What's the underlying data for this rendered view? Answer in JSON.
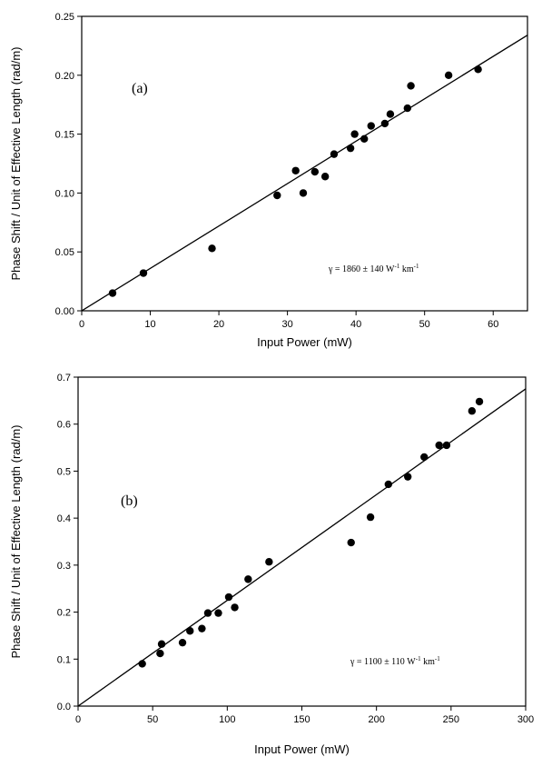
{
  "chart_data": [
    {
      "type": "scatter",
      "panel_label": "(a)",
      "xlabel": "Input Power (mW)",
      "ylabel": "Phase Shift / Unit of Effective Length (rad/m)",
      "xlim": [
        0,
        65
      ],
      "ylim": [
        0,
        0.25
      ],
      "xticks": [
        0,
        10,
        20,
        30,
        40,
        50,
        60
      ],
      "yticks": [
        0.0,
        0.05,
        0.1,
        0.15,
        0.2,
        0.25
      ],
      "ytick_decimals": 2,
      "annotation": {
        "base": "γ = 1860 ± 140 W",
        "exp1": "-1",
        "mid": " km",
        "exp2": "-1"
      },
      "fit_line": {
        "x": [
          0,
          65
        ],
        "y": [
          0,
          0.234
        ]
      },
      "points": [
        [
          4.5,
          0.015
        ],
        [
          9,
          0.032
        ],
        [
          19,
          0.053
        ],
        [
          28.5,
          0.098
        ],
        [
          31.2,
          0.119
        ],
        [
          32.3,
          0.1
        ],
        [
          34,
          0.118
        ],
        [
          35.5,
          0.114
        ],
        [
          36.8,
          0.133
        ],
        [
          39.2,
          0.138
        ],
        [
          39.8,
          0.15
        ],
        [
          41.2,
          0.146
        ],
        [
          42.2,
          0.157
        ],
        [
          44.2,
          0.159
        ],
        [
          45,
          0.167
        ],
        [
          47.5,
          0.172
        ],
        [
          48,
          0.191
        ],
        [
          53.5,
          0.2
        ],
        [
          57.8,
          0.205
        ]
      ]
    },
    {
      "type": "scatter",
      "panel_label": "(b)",
      "xlabel": "Input Power (mW)",
      "ylabel": "Phase Shift / Unit of Effective Length (rad/m)",
      "xlim": [
        0,
        300
      ],
      "ylim": [
        0,
        0.7
      ],
      "xticks": [
        0,
        50,
        100,
        150,
        200,
        250,
        300
      ],
      "yticks": [
        0.0,
        0.1,
        0.2,
        0.3,
        0.4,
        0.5,
        0.6,
        0.7
      ],
      "ytick_decimals": 1,
      "annotation": {
        "base": "γ = 1100 ± 110 W",
        "exp1": "-1",
        "mid": " km",
        "exp2": "-1"
      },
      "fit_line": {
        "x": [
          0,
          300
        ],
        "y": [
          0,
          0.675
        ]
      },
      "points": [
        [
          43,
          0.09
        ],
        [
          55,
          0.112
        ],
        [
          56,
          0.132
        ],
        [
          70,
          0.135
        ],
        [
          75,
          0.16
        ],
        [
          83,
          0.165
        ],
        [
          87,
          0.198
        ],
        [
          94,
          0.198
        ],
        [
          101,
          0.232
        ],
        [
          105,
          0.21
        ],
        [
          114,
          0.27
        ],
        [
          128,
          0.307
        ],
        [
          183,
          0.348
        ],
        [
          196,
          0.402
        ],
        [
          208,
          0.472
        ],
        [
          221,
          0.488
        ],
        [
          232,
          0.53
        ],
        [
          242,
          0.555
        ],
        [
          247,
          0.555
        ],
        [
          264,
          0.628
        ],
        [
          269,
          0.648
        ]
      ]
    }
  ]
}
